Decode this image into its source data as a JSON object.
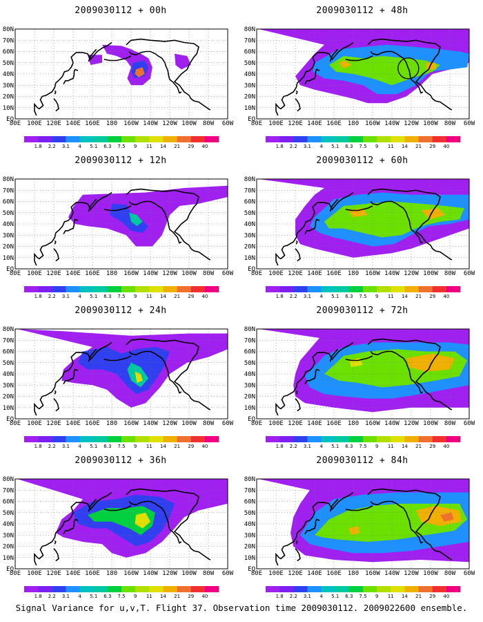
{
  "caption": "Signal Variance for u,v,T. Flight 37. Observation time 2009030112. 2009022600 ensemble.",
  "panels": [
    {
      "title": "2009030112 + 00h",
      "intensity": 0
    },
    {
      "title": "2009030112 + 48h",
      "intensity": 4
    },
    {
      "title": "2009030112 + 12h",
      "intensity": 1
    },
    {
      "title": "2009030112 + 60h",
      "intensity": 5
    },
    {
      "title": "2009030112 + 24h",
      "intensity": 2
    },
    {
      "title": "2009030112 + 72h",
      "intensity": 6
    },
    {
      "title": "2009030112 + 36h",
      "intensity": 3
    },
    {
      "title": "2009030112 + 84h",
      "intensity": 7
    }
  ],
  "y_ticks": [
    "80N",
    "70N",
    "60N",
    "50N",
    "40N",
    "30N",
    "20N",
    "10N",
    "EQ"
  ],
  "x_ticks": [
    "80E",
    "100E",
    "120E",
    "140E",
    "160E",
    "180",
    "160W",
    "140W",
    "120W",
    "100W",
    "80W",
    "60W"
  ],
  "colorbar": {
    "labels": [
      "1.8",
      "2.2",
      "3.1",
      "4",
      "5.1",
      "6.3",
      "7.5",
      "9",
      "11",
      "14",
      "21",
      "29",
      "40"
    ],
    "colors": [
      "#a020f0",
      "#7b20f0",
      "#3040f0",
      "#1e90ff",
      "#00c0c0",
      "#00c8a0",
      "#00d040",
      "#6ce000",
      "#b0e000",
      "#e0e000",
      "#f0b000",
      "#f07030",
      "#f03030",
      "#f00080"
    ]
  }
}
